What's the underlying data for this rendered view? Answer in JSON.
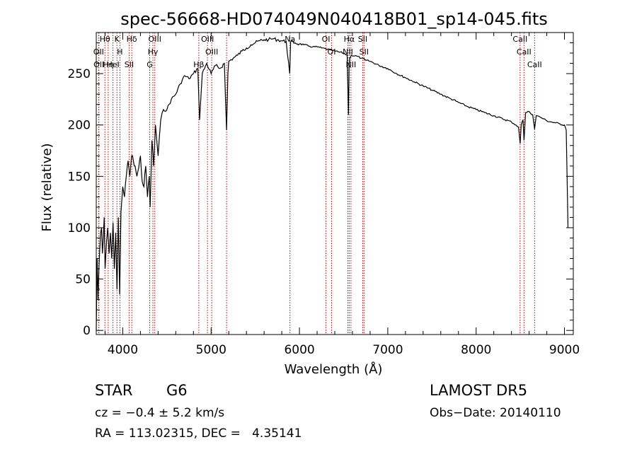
{
  "chart_data": {
    "type": "line",
    "title": "spec-56668-HD074049N040418B01_sp14-045.fits",
    "xlabel": "Wavelength (Å)",
    "ylabel": "Flux (relative)",
    "xlim": [
      3700,
      9100
    ],
    "ylim": [
      -4,
      290
    ],
    "x_ticks": [
      4000,
      5000,
      6000,
      7000,
      8000,
      9000
    ],
    "y_ticks": [
      0,
      50,
      100,
      150,
      200,
      250
    ],
    "grid": false,
    "series": [
      {
        "x": [
          3700,
          3710,
          3720,
          3730,
          3740,
          3750,
          3760,
          3770,
          3780,
          3790,
          3800,
          3815,
          3830,
          3845,
          3860,
          3875,
          3890,
          3905,
          3920,
          3935,
          3950,
          3965,
          3980,
          4000,
          4020,
          4040,
          4060,
          4080,
          4100,
          4120,
          4140,
          4160,
          4180,
          4200,
          4220,
          4240,
          4260,
          4280,
          4300,
          4310,
          4330,
          4350,
          4370,
          4400,
          4430,
          4460,
          4500,
          4550,
          4600,
          4650,
          4700,
          4750,
          4800,
          4850,
          4870,
          4900,
          4950,
          5000,
          5050,
          5100,
          5150,
          5175,
          5190,
          5200,
          5250,
          5300,
          5350,
          5400,
          5450,
          5500,
          5550,
          5600,
          5650,
          5700,
          5750,
          5800,
          5850,
          5890,
          5900,
          5950,
          6000,
          6050,
          6100,
          6150,
          6200,
          6250,
          6300,
          6350,
          6400,
          6450,
          6500,
          6540,
          6555,
          6563,
          6570,
          6590,
          6650,
          6700,
          6750,
          6800,
          6900,
          7000,
          7100,
          7200,
          7300,
          7400,
          7500,
          7600,
          7700,
          7800,
          7900,
          8000,
          8100,
          8200,
          8300,
          8400,
          8450,
          8480,
          8498,
          8510,
          8530,
          8542,
          8560,
          8600,
          8640,
          8662,
          8680,
          8720,
          8760,
          8800,
          8850,
          8900,
          8950,
          9000,
          9020,
          9040
        ],
        "y": [
          0,
          70,
          30,
          60,
          80,
          95,
          100,
          75,
          90,
          110,
          60,
          85,
          100,
          75,
          95,
          70,
          105,
          60,
          95,
          40,
          110,
          35,
          115,
          140,
          130,
          150,
          165,
          150,
          170,
          165,
          160,
          150,
          158,
          170,
          145,
          140,
          160,
          130,
          150,
          120,
          185,
          160,
          200,
          170,
          205,
          215,
          215,
          225,
          230,
          240,
          248,
          245,
          250,
          255,
          205,
          250,
          260,
          250,
          258,
          255,
          260,
          195,
          250,
          262,
          265,
          268,
          272,
          275,
          278,
          280,
          282,
          283,
          283,
          284,
          283,
          282,
          281,
          250,
          281,
          280,
          279,
          278,
          277,
          276,
          276,
          275,
          274,
          273,
          272,
          271,
          270,
          268,
          210,
          260,
          265,
          268,
          267,
          265,
          263,
          262,
          258,
          255,
          250,
          246,
          242,
          238,
          234,
          230,
          226,
          222,
          218,
          215,
          212,
          209,
          206,
          203,
          200,
          198,
          182,
          200,
          205,
          185,
          212,
          213,
          210,
          196,
          209,
          208,
          206,
          204,
          203,
          202,
          201,
          200,
          195,
          100
        ]
      }
    ],
    "line_markers": [
      {
        "label": "Hθ",
        "wl": 3798
      },
      {
        "label": "OII",
        "wl": 3727
      },
      {
        "label": "OII",
        "wl": 3730
      },
      {
        "label": "HeI",
        "wl": 3889
      },
      {
        "label": "Hη",
        "wl": 3835
      },
      {
        "label": "K",
        "wl": 3934
      },
      {
        "label": "H",
        "wl": 3968
      },
      {
        "label": "Hδ",
        "wl": 4102
      },
      {
        "label": "SII",
        "wl": 4072
      },
      {
        "label": "OIII",
        "wl": 4363
      },
      {
        "label": "Hγ",
        "wl": 4341
      },
      {
        "label": "G",
        "wl": 4305
      },
      {
        "label": "OIII",
        "wl": 4959
      },
      {
        "label": "OIII",
        "wl": 5007
      },
      {
        "label": "Hβ",
        "wl": 4861
      },
      {
        "label": "",
        "wl": 5175
      },
      {
        "label": "Na",
        "wl": 5893
      },
      {
        "label": "OI",
        "wl": 6300
      },
      {
        "label": "OI",
        "wl": 6364
      },
      {
        "label": "Hα",
        "wl": 6563
      },
      {
        "label": "NII",
        "wl": 6548
      },
      {
        "label": "NII",
        "wl": 6583
      },
      {
        "label": "SII",
        "wl": 6716
      },
      {
        "label": "SII",
        "wl": 6731
      },
      {
        "label": "CaII",
        "wl": 8498
      },
      {
        "label": "CaII",
        "wl": 8542
      },
      {
        "label": "CaII",
        "wl": 8662
      }
    ]
  },
  "info": {
    "class": "STAR",
    "subclass": "G6",
    "survey": "LAMOST DR5",
    "cz": "cz = −0.4 ± 5.2 km/s",
    "obs_date": "Obs−Date: 20140110",
    "coords": "RA = 113.02315, DEC =   4.35141"
  },
  "colors": {
    "spectrum": "#000000",
    "marker_line": "#c00000",
    "axes": "#000000"
  }
}
